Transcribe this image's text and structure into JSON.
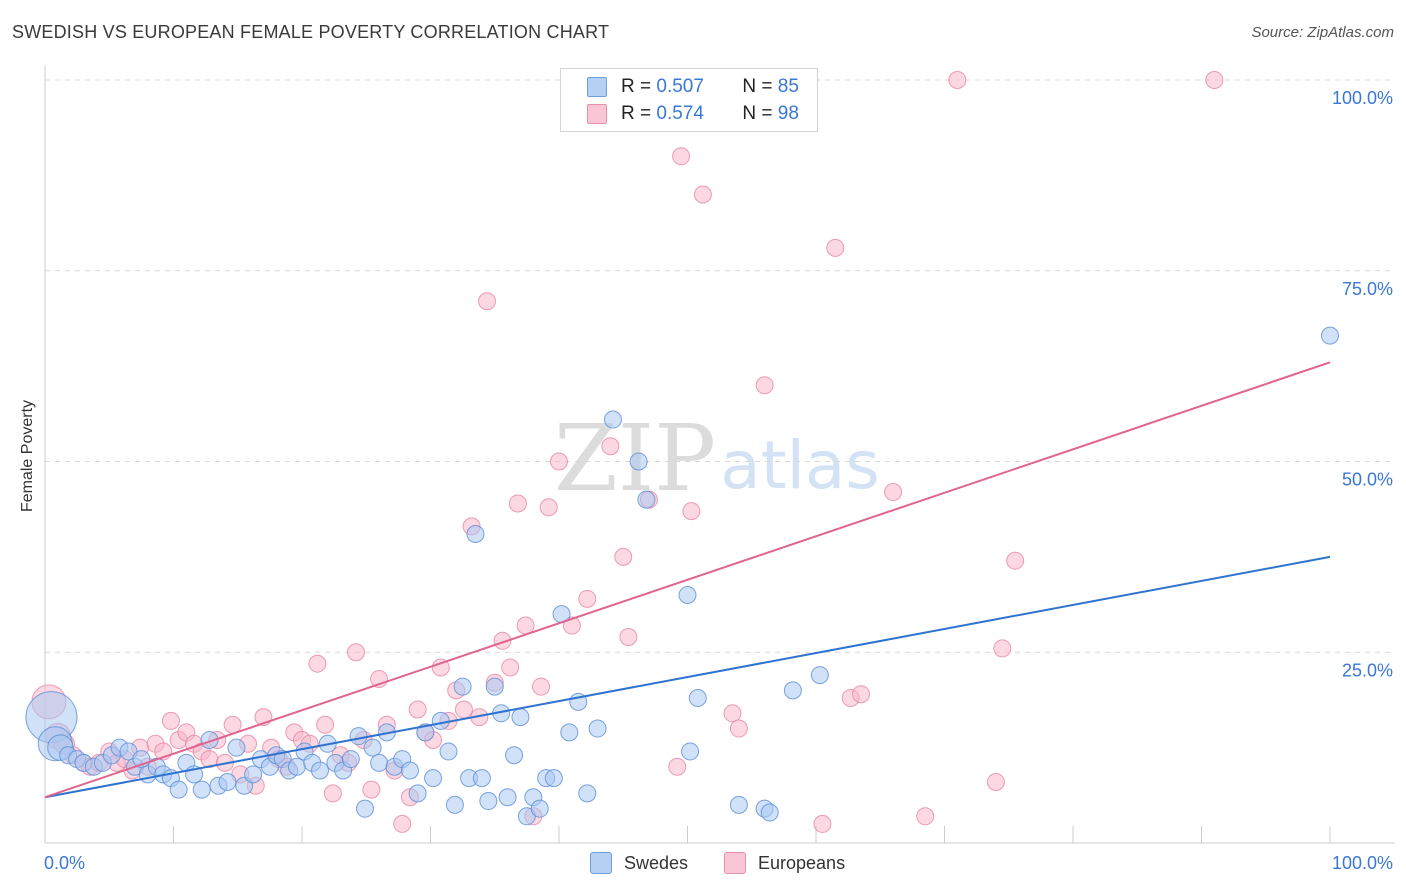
{
  "header": {
    "title": "SWEDISH VS EUROPEAN FEMALE POVERTY CORRELATION CHART",
    "source": "Source: ZipAtlas.com"
  },
  "watermark": {
    "zip": "ZIP",
    "atlas": "atlas"
  },
  "legend": {
    "r_label": "R =",
    "n_label": "N =",
    "rows": [
      {
        "name": "Swedes",
        "r": "0.507",
        "n": "85"
      },
      {
        "name": "Europeans",
        "r": "0.574",
        "n": "98"
      }
    ]
  },
  "colors": {
    "swedes_fill": "#a9c8f2",
    "swedes_stroke": "#5b8fd6",
    "swedes_line": "#2f73d0",
    "europeans_fill": "#f7b8cb",
    "europeans_stroke": "#e786a6",
    "europeans_line": "#e0648f",
    "grid": "#d8d8d8",
    "tick_label": "#3a78d4"
  },
  "chart_data": {
    "type": "scatter",
    "ylabel": "Female Poverty",
    "xlabel": "",
    "xlim": [
      0,
      100
    ],
    "ylim": [
      0,
      100
    ],
    "x_tick_labels": [
      {
        "value": 0,
        "label": "0.0%"
      },
      {
        "value": 100,
        "label": "100.0%"
      }
    ],
    "y_tick_labels": [
      {
        "value": 25,
        "label": "25.0%"
      },
      {
        "value": 50,
        "label": "50.0%"
      },
      {
        "value": 75,
        "label": "75.0%"
      },
      {
        "value": 100,
        "label": "100.0%"
      }
    ],
    "grid": true,
    "legend_position": "top-center",
    "series": [
      {
        "name": "Swedes",
        "r": 0.507,
        "n": 85,
        "trend": {
          "x": [
            0,
            100
          ],
          "y": [
            6.0,
            37.5
          ]
        },
        "points": [
          [
            0.5,
            16.5,
            3
          ],
          [
            0.8,
            13.0,
            2
          ],
          [
            1.2,
            12.5,
            1.5
          ],
          [
            1.8,
            11.5,
            1
          ],
          [
            2.5,
            11.0,
            1
          ],
          [
            3.0,
            10.5,
            1
          ],
          [
            3.8,
            10.0,
            1
          ],
          [
            4.5,
            10.5,
            1
          ],
          [
            5.2,
            11.5,
            1
          ],
          [
            5.8,
            12.5,
            1
          ],
          [
            6.5,
            12.0,
            1
          ],
          [
            7.0,
            10.0,
            1
          ],
          [
            7.5,
            11.0,
            1
          ],
          [
            8.0,
            9.0,
            1
          ],
          [
            8.7,
            10.0,
            1
          ],
          [
            9.2,
            9.0,
            1
          ],
          [
            9.8,
            8.5,
            1
          ],
          [
            10.4,
            7.0,
            1
          ],
          [
            11.0,
            10.5,
            1
          ],
          [
            11.6,
            9.0,
            1
          ],
          [
            12.2,
            7.0,
            1
          ],
          [
            12.8,
            13.5,
            1
          ],
          [
            13.5,
            7.5,
            1
          ],
          [
            14.2,
            8.0,
            1
          ],
          [
            14.9,
            12.5,
            1
          ],
          [
            15.5,
            7.5,
            1
          ],
          [
            16.2,
            9.0,
            1
          ],
          [
            16.8,
            11.0,
            1
          ],
          [
            17.5,
            10.0,
            1
          ],
          [
            18.0,
            11.5,
            1
          ],
          [
            18.5,
            11.0,
            1
          ],
          [
            19.0,
            9.5,
            1
          ],
          [
            19.6,
            10.0,
            1
          ],
          [
            20.2,
            12.0,
            1
          ],
          [
            20.8,
            10.5,
            1
          ],
          [
            21.4,
            9.5,
            1
          ],
          [
            22.0,
            13.0,
            1
          ],
          [
            22.6,
            10.5,
            1
          ],
          [
            23.2,
            9.5,
            1
          ],
          [
            23.8,
            11.0,
            1
          ],
          [
            24.4,
            14.0,
            1
          ],
          [
            24.9,
            4.5,
            1
          ],
          [
            25.5,
            12.5,
            1
          ],
          [
            26.0,
            10.5,
            1
          ],
          [
            26.6,
            14.5,
            1
          ],
          [
            27.2,
            10.0,
            1
          ],
          [
            27.8,
            11.0,
            1
          ],
          [
            28.4,
            9.5,
            1
          ],
          [
            29.0,
            6.5,
            1
          ],
          [
            29.6,
            14.5,
            1
          ],
          [
            30.2,
            8.5,
            1
          ],
          [
            30.8,
            16.0,
            1
          ],
          [
            31.4,
            12.0,
            1
          ],
          [
            31.9,
            5.0,
            1
          ],
          [
            32.5,
            20.5,
            1
          ],
          [
            33.0,
            8.5,
            1
          ],
          [
            33.5,
            40.5,
            1
          ],
          [
            34.0,
            8.5,
            1
          ],
          [
            34.5,
            5.5,
            1
          ],
          [
            35.0,
            20.5,
            1
          ],
          [
            35.5,
            17.0,
            1
          ],
          [
            36.0,
            6.0,
            1
          ],
          [
            36.5,
            11.5,
            1
          ],
          [
            37.0,
            16.5,
            1
          ],
          [
            37.5,
            3.5,
            1
          ],
          [
            38.0,
            6.0,
            1
          ],
          [
            38.5,
            4.5,
            1
          ],
          [
            39.0,
            8.5,
            1
          ],
          [
            39.6,
            8.5,
            1
          ],
          [
            40.2,
            30.0,
            1
          ],
          [
            40.8,
            14.5,
            1
          ],
          [
            41.5,
            18.5,
            1
          ],
          [
            42.2,
            6.5,
            1
          ],
          [
            43.0,
            15.0,
            1
          ],
          [
            44.2,
            55.5,
            1
          ],
          [
            46.2,
            50.0,
            1
          ],
          [
            46.8,
            45.0,
            1
          ],
          [
            50.0,
            32.5,
            1
          ],
          [
            50.8,
            19.0,
            1
          ],
          [
            50.2,
            12.0,
            1
          ],
          [
            54.0,
            5.0,
            1
          ],
          [
            56.0,
            4.5,
            1
          ],
          [
            56.4,
            4.0,
            1
          ],
          [
            58.2,
            20.0,
            1
          ],
          [
            60.3,
            22.0,
            1
          ],
          [
            100.0,
            66.5,
            1
          ]
        ]
      },
      {
        "name": "Europeans",
        "r": 0.574,
        "n": 98,
        "trend": {
          "x": [
            0,
            100
          ],
          "y": [
            6.0,
            63.0
          ]
        },
        "points": [
          [
            0.3,
            18.5,
            2
          ],
          [
            1.0,
            14.0,
            1.5
          ],
          [
            1.5,
            13.0,
            1.2
          ],
          [
            2.2,
            11.5,
            1
          ],
          [
            3.0,
            10.5,
            1
          ],
          [
            3.5,
            10.0,
            1
          ],
          [
            4.2,
            10.5,
            1
          ],
          [
            5.0,
            12.0,
            1
          ],
          [
            5.6,
            10.5,
            1
          ],
          [
            6.2,
            11.0,
            1
          ],
          [
            6.8,
            9.5,
            1
          ],
          [
            7.4,
            12.5,
            1
          ],
          [
            8.0,
            10.0,
            1
          ],
          [
            8.6,
            13.0,
            1
          ],
          [
            9.2,
            12.0,
            1
          ],
          [
            9.8,
            16.0,
            1
          ],
          [
            10.4,
            13.5,
            1
          ],
          [
            11.0,
            14.5,
            1
          ],
          [
            11.6,
            13.0,
            1
          ],
          [
            12.2,
            12.0,
            1
          ],
          [
            12.8,
            11.0,
            1
          ],
          [
            13.4,
            13.5,
            1
          ],
          [
            14.0,
            10.5,
            1
          ],
          [
            14.6,
            15.5,
            1
          ],
          [
            15.2,
            9.0,
            1
          ],
          [
            15.8,
            13.0,
            1
          ],
          [
            16.4,
            7.5,
            1
          ],
          [
            17.0,
            16.5,
            1
          ],
          [
            17.6,
            12.5,
            1
          ],
          [
            18.2,
            11.0,
            1
          ],
          [
            18.8,
            10.0,
            1
          ],
          [
            19.4,
            14.5,
            1
          ],
          [
            20.0,
            13.5,
            1
          ],
          [
            20.6,
            13.0,
            1
          ],
          [
            21.2,
            23.5,
            1
          ],
          [
            21.8,
            15.5,
            1
          ],
          [
            22.4,
            6.5,
            1
          ],
          [
            23.0,
            11.5,
            1
          ],
          [
            23.6,
            10.5,
            1
          ],
          [
            24.2,
            25.0,
            1
          ],
          [
            24.8,
            13.5,
            1
          ],
          [
            25.4,
            7.0,
            1
          ],
          [
            26.0,
            21.5,
            1
          ],
          [
            26.6,
            15.5,
            1
          ],
          [
            27.2,
            9.5,
            1
          ],
          [
            27.8,
            2.5,
            1
          ],
          [
            28.4,
            6.0,
            1
          ],
          [
            29.0,
            17.5,
            1
          ],
          [
            29.6,
            14.5,
            1
          ],
          [
            30.2,
            13.5,
            1
          ],
          [
            30.8,
            23.0,
            1
          ],
          [
            31.4,
            16.0,
            1
          ],
          [
            32.0,
            20.0,
            1
          ],
          [
            32.6,
            17.5,
            1
          ],
          [
            33.2,
            41.5,
            1
          ],
          [
            33.8,
            16.5,
            1
          ],
          [
            34.4,
            71.0,
            1
          ],
          [
            35.0,
            21.0,
            1
          ],
          [
            35.6,
            26.5,
            1
          ],
          [
            36.2,
            23.0,
            1
          ],
          [
            36.8,
            44.5,
            1
          ],
          [
            37.4,
            28.5,
            1
          ],
          [
            38.0,
            3.5,
            1
          ],
          [
            38.6,
            20.5,
            1
          ],
          [
            39.2,
            44.0,
            1
          ],
          [
            40.0,
            50.0,
            1
          ],
          [
            41.0,
            28.5,
            1
          ],
          [
            42.2,
            32.0,
            1
          ],
          [
            44.0,
            52.0,
            1
          ],
          [
            45.0,
            37.5,
            1
          ],
          [
            45.4,
            27.0,
            1
          ],
          [
            47.0,
            45.0,
            1
          ],
          [
            49.5,
            90.0,
            1
          ],
          [
            49.2,
            10.0,
            1
          ],
          [
            50.3,
            43.5,
            1
          ],
          [
            51.2,
            85.0,
            1
          ],
          [
            53.5,
            17.0,
            1
          ],
          [
            54.0,
            15.0,
            1
          ],
          [
            56.0,
            60.0,
            1
          ],
          [
            60.5,
            2.5,
            1
          ],
          [
            61.5,
            78.0,
            1
          ],
          [
            62.7,
            19.0,
            1
          ],
          [
            63.5,
            19.5,
            1
          ],
          [
            66.0,
            46.0,
            1
          ],
          [
            68.5,
            3.5,
            1
          ],
          [
            71.0,
            100.0,
            1
          ],
          [
            74.5,
            25.5,
            1
          ],
          [
            74.0,
            8.0,
            1
          ],
          [
            75.5,
            37.0,
            1
          ],
          [
            91.0,
            100.0,
            1
          ]
        ]
      }
    ]
  }
}
